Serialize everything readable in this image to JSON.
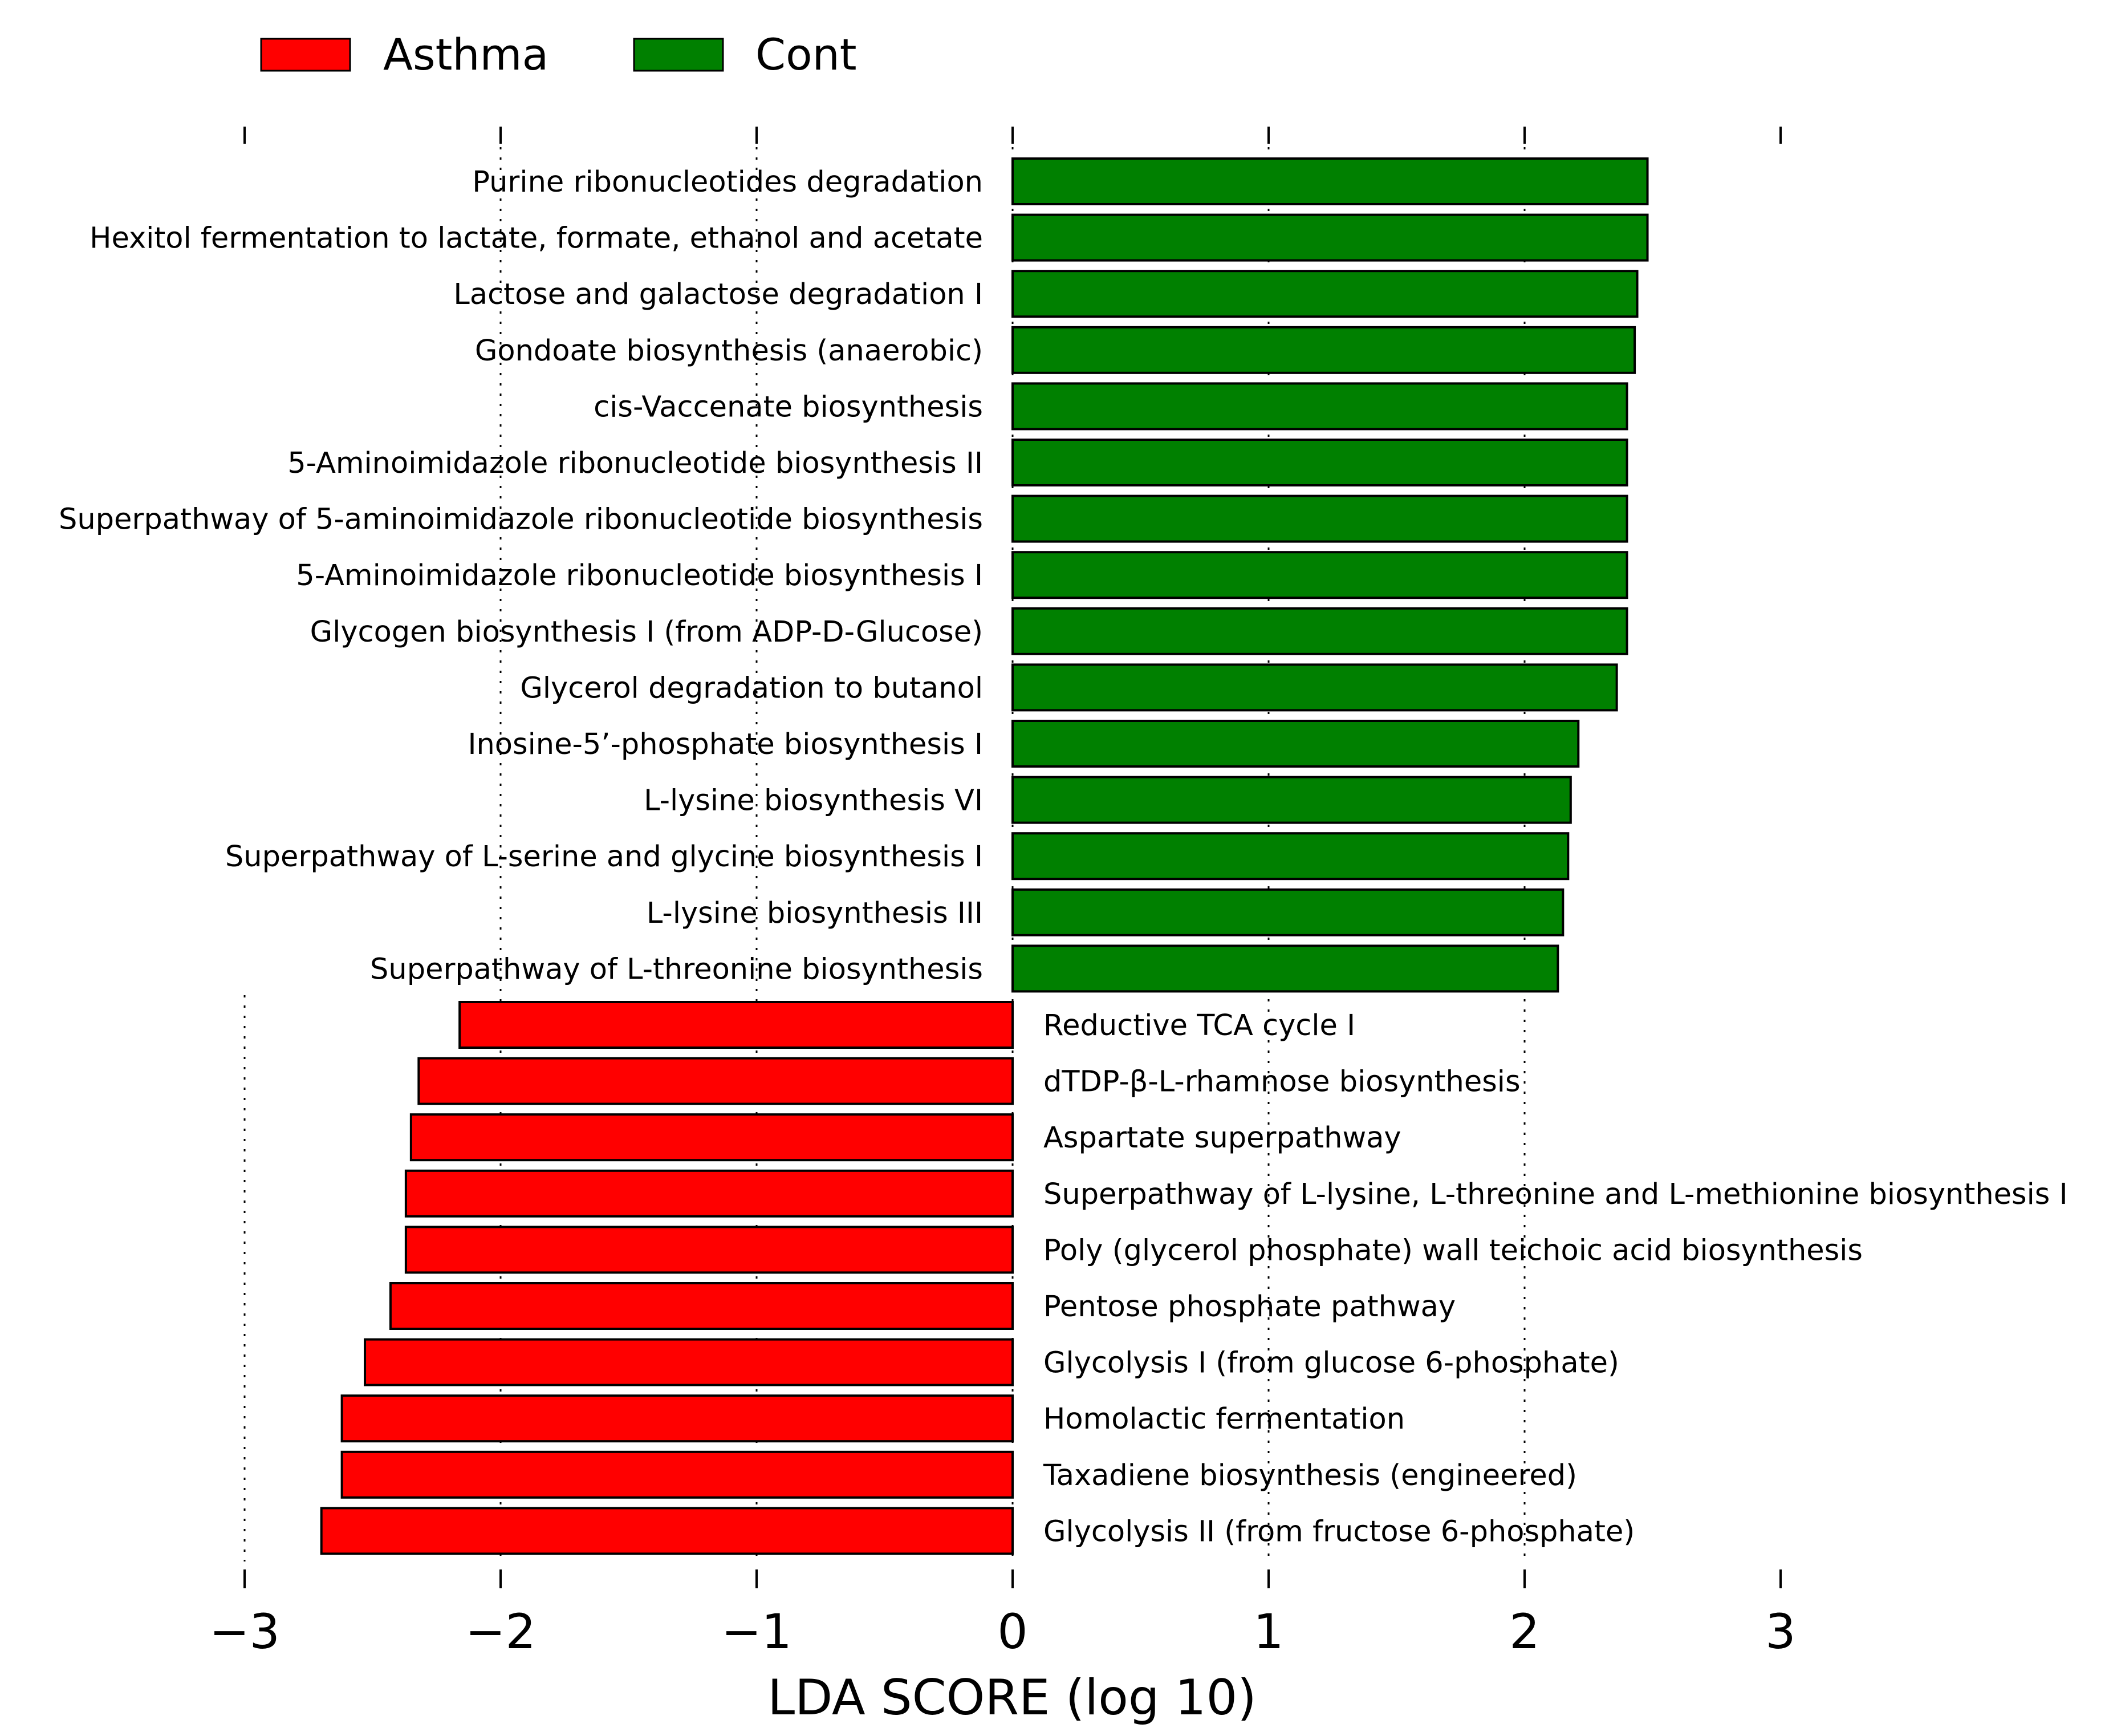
{
  "chart_data": {
    "type": "bar",
    "orientation": "horizontal",
    "xlabel": "LDA SCORE (log 10)",
    "xlim": [
      -3,
      3
    ],
    "xticks": [
      -3,
      -2,
      -1,
      0,
      1,
      2,
      3
    ],
    "xtick_labels": [
      "−3",
      "−2",
      "−1",
      "0",
      "1",
      "2",
      "3"
    ],
    "grid": "vertical dotted",
    "legend": {
      "position": "top-left",
      "entries": [
        {
          "label": "Asthma",
          "color": "#ff0000"
        },
        {
          "label": "Cont",
          "color": "#008000"
        }
      ]
    },
    "series": [
      {
        "name": "Cont",
        "color": "#008000"
      },
      {
        "name": "Asthma",
        "color": "#ff0000"
      }
    ],
    "bars": [
      {
        "label": "Purine ribonucleotides degradation",
        "value": 2.48,
        "group": "Cont"
      },
      {
        "label": "Hexitol fermentation to lactate, formate, ethanol and acetate",
        "value": 2.48,
        "group": "Cont"
      },
      {
        "label": "Lactose and galactose degradation I",
        "value": 2.44,
        "group": "Cont"
      },
      {
        "label": "Gondoate biosynthesis (anaerobic)",
        "value": 2.43,
        "group": "Cont"
      },
      {
        "label": "cis-Vaccenate biosynthesis",
        "value": 2.4,
        "group": "Cont"
      },
      {
        "label": "5-Aminoimidazole ribonucleotide biosynthesis II",
        "value": 2.4,
        "group": "Cont"
      },
      {
        "label": "Superpathway of 5-aminoimidazole ribonucleotide biosynthesis",
        "value": 2.4,
        "group": "Cont"
      },
      {
        "label": "5-Aminoimidazole ribonucleotide biosynthesis I",
        "value": 2.4,
        "group": "Cont"
      },
      {
        "label": "Glycogen biosynthesis I (from ADP-D-Glucose)",
        "value": 2.4,
        "group": "Cont"
      },
      {
        "label": "Glycerol degradation to butanol",
        "value": 2.36,
        "group": "Cont"
      },
      {
        "label": "Inosine-5’-phosphate biosynthesis I",
        "value": 2.21,
        "group": "Cont"
      },
      {
        "label": "L-lysine biosynthesis VI",
        "value": 2.18,
        "group": "Cont"
      },
      {
        "label": "Superpathway of L-serine and glycine biosynthesis I",
        "value": 2.17,
        "group": "Cont"
      },
      {
        "label": "L-lysine biosynthesis III",
        "value": 2.15,
        "group": "Cont"
      },
      {
        "label": "Superpathway of L-threonine biosynthesis",
        "value": 2.13,
        "group": "Cont"
      },
      {
        "label": "Reductive TCA cycle I",
        "value": -2.16,
        "group": "Asthma"
      },
      {
        "label": "dTDP-β-L-rhamnose biosynthesis",
        "value": -2.32,
        "group": "Asthma"
      },
      {
        "label": "Aspartate superpathway",
        "value": -2.35,
        "group": "Asthma"
      },
      {
        "label": "Superpathway of L-lysine, L-threonine and L-methionine biosynthesis I",
        "value": -2.37,
        "group": "Asthma"
      },
      {
        "label": "Poly (glycerol phosphate) wall teichoic acid biosynthesis",
        "value": -2.37,
        "group": "Asthma"
      },
      {
        "label": "Pentose phosphate pathway",
        "value": -2.43,
        "group": "Asthma"
      },
      {
        "label": "Glycolysis I (from glucose 6-phosphate)",
        "value": -2.53,
        "group": "Asthma"
      },
      {
        "label": "Homolactic fermentation",
        "value": -2.62,
        "group": "Asthma"
      },
      {
        "label": "Taxadiene biosynthesis (engineered)",
        "value": -2.62,
        "group": "Asthma"
      },
      {
        "label": "Glycolysis II (from fructose 6-phosphate)",
        "value": -2.7,
        "group": "Asthma"
      }
    ]
  }
}
